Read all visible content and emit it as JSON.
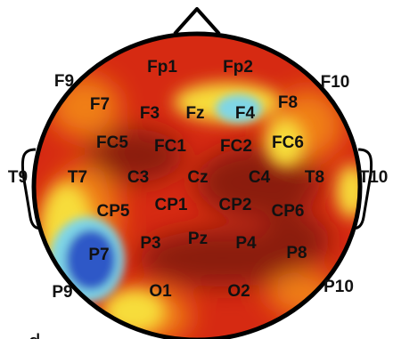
{
  "figure": {
    "panel_letter": "d",
    "colors": {
      "outline": "#000000",
      "dark_red": "#8b1a0d",
      "red": "#d62a12",
      "orange": "#f07f14",
      "yellow": "#f7dd3a",
      "cyan": "#7fd6e6",
      "blue": "#2f59c7"
    },
    "channels": [
      {
        "label": "Fp1"
      },
      {
        "label": "Fp2"
      },
      {
        "label": "F9"
      },
      {
        "label": "F10"
      },
      {
        "label": "F7"
      },
      {
        "label": "F3"
      },
      {
        "label": "Fz"
      },
      {
        "label": "F4"
      },
      {
        "label": "F8"
      },
      {
        "label": "FC5"
      },
      {
        "label": "FC1"
      },
      {
        "label": "FC2"
      },
      {
        "label": "FC6"
      },
      {
        "label": "T9"
      },
      {
        "label": "T7"
      },
      {
        "label": "C3"
      },
      {
        "label": "Cz"
      },
      {
        "label": "C4"
      },
      {
        "label": "T8"
      },
      {
        "label": "T10"
      },
      {
        "label": "CP5"
      },
      {
        "label": "CP1"
      },
      {
        "label": "CP2"
      },
      {
        "label": "CP6"
      },
      {
        "label": "P7"
      },
      {
        "label": "P3"
      },
      {
        "label": "Pz"
      },
      {
        "label": "P4"
      },
      {
        "label": "P8"
      },
      {
        "label": "P9"
      },
      {
        "label": "P10"
      },
      {
        "label": "O1"
      },
      {
        "label": "O2"
      }
    ]
  }
}
